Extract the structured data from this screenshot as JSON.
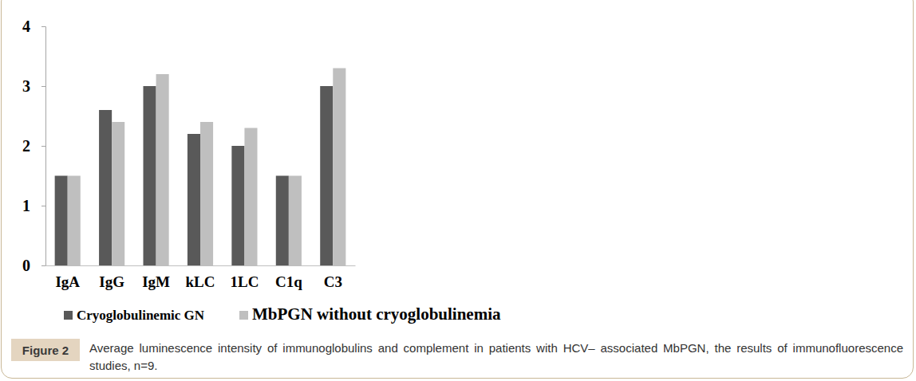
{
  "chart_data": {
    "type": "bar",
    "title": "Figure 2",
    "subtitle": "Average luminescence intensity of immunoglobulins and complement in patients with HCV– associated MbPGN, the results of immunofluorescence studies, n=9.",
    "categories": [
      "IgA",
      "IgG",
      "IgM",
      "kLC",
      "1LC",
      "C1q",
      "C3"
    ],
    "series": [
      {
        "name": "Cryoglobulinemic GN",
        "color": "#595959",
        "values": [
          1.5,
          2.6,
          3.0,
          2.2,
          2.0,
          1.5,
          3.0
        ]
      },
      {
        "name": "MbPGN without cryoglobulinemia",
        "color": "#bfbfbf",
        "values": [
          1.5,
          2.4,
          3.2,
          2.4,
          2.3,
          1.5,
          3.3
        ]
      }
    ],
    "ylim": [
      0,
      4
    ],
    "yticks": [
      0,
      1,
      2,
      3,
      4
    ],
    "grid": false,
    "legend": "bottom"
  }
}
